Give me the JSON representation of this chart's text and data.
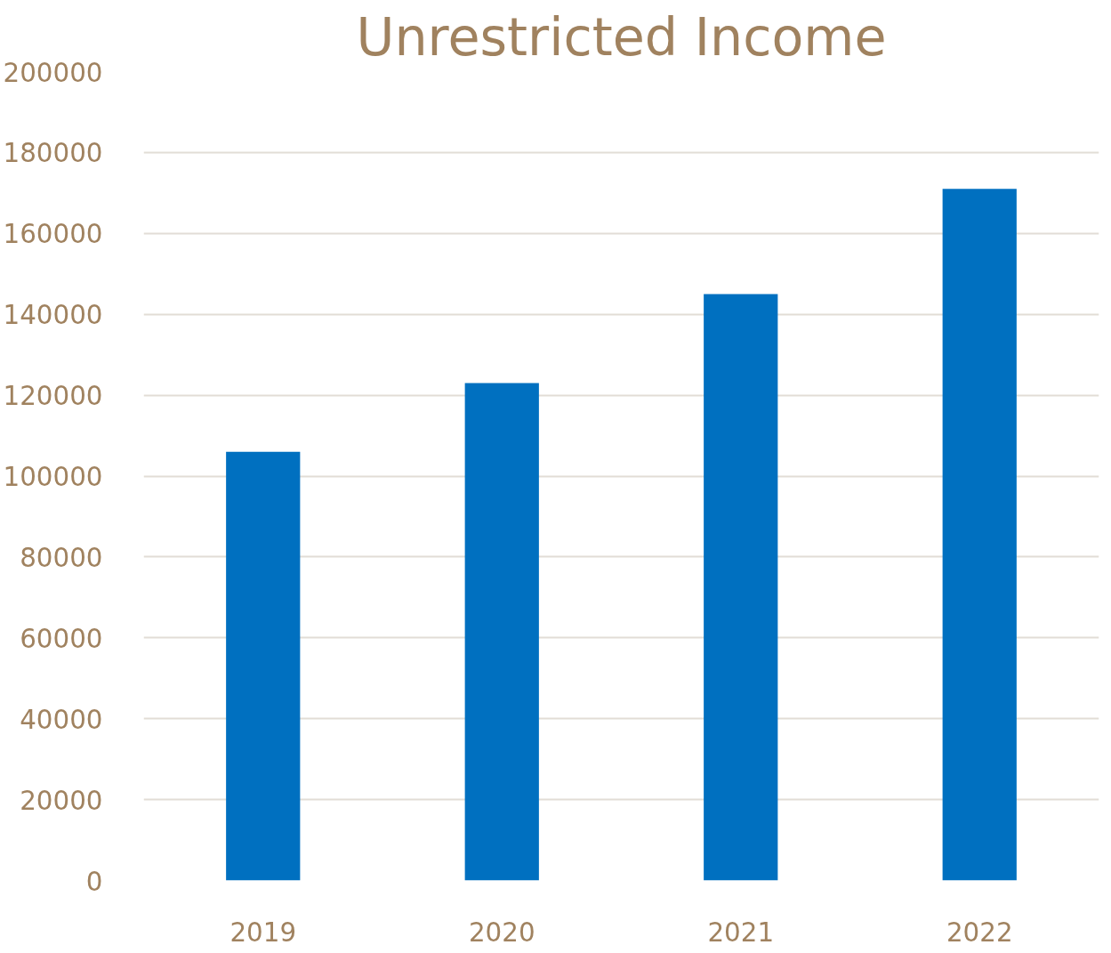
{
  "chart_data": {
    "type": "bar",
    "title": "Unrestricted Income",
    "categories": [
      "2019",
      "2020",
      "2021",
      "2022"
    ],
    "values": [
      106000,
      123000,
      145000,
      171000
    ],
    "color": "#0070c0",
    "ylim": [
      0,
      200000
    ],
    "yticks": [
      0,
      20000,
      40000,
      60000,
      80000,
      100000,
      120000,
      140000,
      160000,
      180000,
      200000
    ],
    "grid": "y"
  }
}
